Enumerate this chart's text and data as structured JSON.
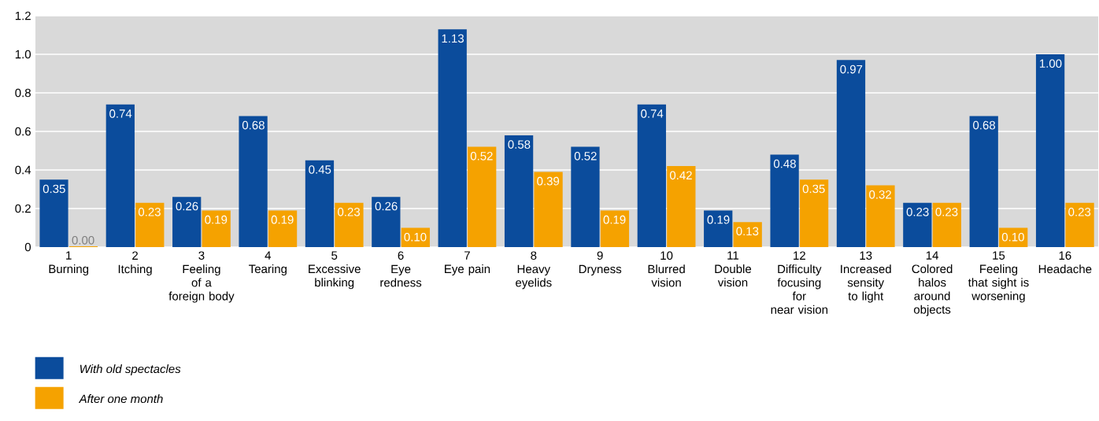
{
  "chart_data": {
    "type": "bar",
    "categories": [
      "1\nBurning",
      "2\nItching",
      "3\nFeeling\nof a\nforeign body",
      "4\nTearing",
      "5\nExcessive\nblinking",
      "6\nEye\nredness",
      "7\nEye pain",
      "8\nHeavy\neyelids",
      "9\nDryness",
      "10\nBlurred\nvision",
      "11\nDouble\nvision",
      "12\nDifficulty\nfocusing\nfor\nnear vision",
      "13\nIncreased\nsensity\nto light",
      "14\nColored\nhalos\naround\nobjects",
      "15\nFeeling\nthat sight is\nworsening",
      "16\nHeadache"
    ],
    "series": [
      {
        "name": "With old spectacles",
        "color": "#0b4c9c",
        "values": [
          0.35,
          0.74,
          0.26,
          0.68,
          0.45,
          0.26,
          1.13,
          0.58,
          0.52,
          0.74,
          0.19,
          0.48,
          0.97,
          0.23,
          0.68,
          1.0
        ],
        "value_labels": [
          "0.35",
          "0.74",
          "0.26",
          "0.68",
          "0.45",
          "0.26",
          "1.13",
          "0.58",
          "0.52",
          "0.74",
          "0.19",
          "0.48",
          "0.97",
          "0.23",
          "0.68",
          "1.00"
        ]
      },
      {
        "name": "After one month",
        "color": "#f5a200",
        "values": [
          0.004,
          0.23,
          0.19,
          0.19,
          0.23,
          0.1,
          0.52,
          0.39,
          0.19,
          0.42,
          0.13,
          0.35,
          0.32,
          0.23,
          0.1,
          0.23
        ],
        "value_labels": [
          "0.00",
          "0.23",
          "0.19",
          "0.19",
          "0.23",
          "0.10",
          "0.52",
          "0.39",
          "0.19",
          "0.42",
          "0.13",
          "0.35",
          "0.32",
          "0.23",
          "0.10",
          "0.23"
        ]
      }
    ],
    "ylim": [
      0,
      1.2
    ],
    "yticks": [
      {
        "value": 0,
        "label": "0"
      },
      0.2,
      0.4,
      0.6,
      0.8,
      {
        "value": 1.0,
        "label": "1.0"
      },
      1.2
    ],
    "grid": "y",
    "legend": "bottom left"
  }
}
